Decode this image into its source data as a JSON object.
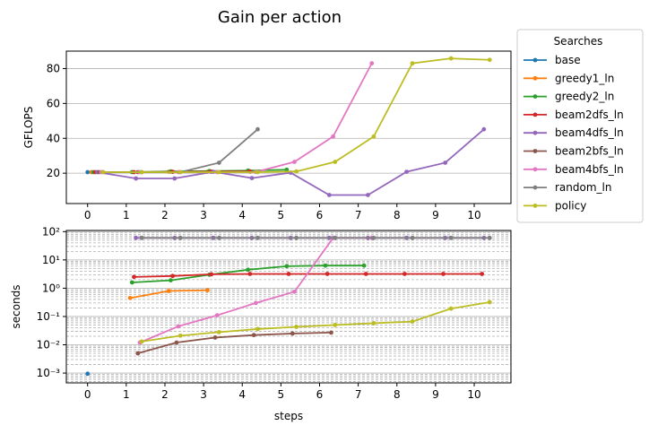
{
  "figure": {
    "title": "Gain per action"
  },
  "legend": {
    "title": "Searches",
    "placement": "outside-right",
    "entries": [
      "base",
      "greedy1_ln",
      "greedy2_ln",
      "beam2dfs_ln",
      "beam4dfs_ln",
      "beam2bfs_ln",
      "beam4bfs_ln",
      "random_ln",
      "policy"
    ]
  },
  "colors": {
    "base": "#1f77b4",
    "greedy1_ln": "#ff7f0e",
    "greedy2_ln": "#2ca02c",
    "beam2dfs_ln": "#d62728",
    "beam4dfs_ln": "#9467bd",
    "beam2bfs_ln": "#8c564b",
    "beam4bfs_ln": "#e377c2",
    "random_ln": "#7f7f7f",
    "policy": "#bcbd22"
  },
  "chart_data": [
    {
      "type": "line",
      "ylabel": "GFLOPS",
      "xlabel": "",
      "xlim": [
        -0.55,
        10.95
      ],
      "ylim": [
        2.6,
        90
      ],
      "xticks": [
        0,
        1,
        2,
        3,
        4,
        5,
        6,
        7,
        8,
        9,
        10
      ],
      "yticks": [
        20,
        40,
        60,
        80
      ],
      "grid": "y-major",
      "series": [
        {
          "name": "base",
          "points": [
            [
              0.0,
              20.6
            ]
          ]
        },
        {
          "name": "greedy1_ln",
          "points": [
            [
              0.1,
              20.6
            ],
            [
              2.1,
              20.8
            ],
            [
              3.1,
              20.8
            ]
          ]
        },
        {
          "name": "greedy2_ln",
          "points": [
            [
              0.15,
              20.6
            ],
            [
              1.15,
              20.6
            ],
            [
              2.15,
              21.0
            ],
            [
              3.15,
              21.2
            ],
            [
              4.15,
              21.5
            ],
            [
              5.15,
              22.0
            ]
          ]
        },
        {
          "name": "beam2dfs_ln",
          "points": [
            [
              0.2,
              20.6
            ],
            [
              1.2,
              20.6
            ],
            [
              2.2,
              20.8
            ],
            [
              3.2,
              20.9
            ],
            [
              4.2,
              21.0
            ]
          ]
        },
        {
          "name": "beam4dfs_ln",
          "points": [
            [
              0.25,
              20.6
            ],
            [
              1.25,
              17.0
            ],
            [
              2.25,
              17.0
            ],
            [
              3.25,
              20.8
            ],
            [
              4.25,
              17.2
            ],
            [
              5.25,
              20.3
            ],
            [
              6.25,
              7.5
            ],
            [
              7.25,
              7.5
            ],
            [
              8.25,
              20.8
            ],
            [
              9.25,
              26.0
            ],
            [
              10.25,
              45.2
            ]
          ]
        },
        {
          "name": "beam2bfs_ln",
          "points": [
            [
              0.3,
              20.6
            ],
            [
              1.3,
              20.6
            ]
          ]
        },
        {
          "name": "beam4bfs_ln",
          "points": [
            [
              0.35,
              20.6
            ],
            [
              1.35,
              20.6
            ],
            [
              2.35,
              20.6
            ],
            [
              3.35,
              20.6
            ],
            [
              4.35,
              20.7
            ],
            [
              5.35,
              26.5
            ],
            [
              6.35,
              41.0
            ],
            [
              7.35,
              83.0
            ]
          ]
        },
        {
          "name": "random_ln",
          "points": [
            [
              0.4,
              20.6
            ],
            [
              1.4,
              20.6
            ],
            [
              2.4,
              20.6
            ],
            [
              3.4,
              26.0
            ],
            [
              4.4,
              45.2
            ]
          ]
        },
        {
          "name": "policy",
          "points": [
            [
              0.4,
              20.6
            ],
            [
              1.4,
              20.6
            ],
            [
              2.4,
              20.6
            ],
            [
              3.4,
              20.6
            ],
            [
              4.4,
              20.6
            ],
            [
              5.4,
              21.0
            ],
            [
              6.4,
              26.5
            ],
            [
              7.4,
              41.0
            ],
            [
              8.4,
              83.0
            ],
            [
              9.4,
              85.8
            ],
            [
              10.4,
              85.0
            ]
          ]
        }
      ]
    },
    {
      "type": "line",
      "xlabel": "steps",
      "ylabel": "seconds",
      "yscale": "log",
      "xlim": [
        -0.55,
        10.95
      ],
      "ylim": [
        0.00045,
        110
      ],
      "xticks": [
        0,
        1,
        2,
        3,
        4,
        5,
        6,
        7,
        8,
        9,
        10
      ],
      "yticks": [
        0.001,
        0.01,
        0.1,
        1,
        10,
        100
      ],
      "ytick_labels": [
        "10⁻³",
        "10⁻²",
        "10⁻¹",
        "10⁰",
        "10¹",
        "10²"
      ],
      "grid": "y-major-and-minor",
      "series": [
        {
          "name": "base",
          "points": [
            [
              0.0,
              0.00095
            ]
          ]
        },
        {
          "name": "greedy1_ln",
          "points": [
            [
              1.1,
              0.45
            ],
            [
              2.1,
              0.8
            ],
            [
              3.1,
              0.85
            ]
          ]
        },
        {
          "name": "greedy2_ln",
          "points": [
            [
              1.15,
              1.6
            ],
            [
              2.15,
              1.9
            ],
            [
              3.15,
              3.0
            ],
            [
              4.15,
              4.5
            ],
            [
              5.15,
              6.0
            ],
            [
              6.15,
              6.3
            ],
            [
              7.15,
              6.3
            ]
          ]
        },
        {
          "name": "beam2dfs_ln",
          "points": [
            [
              1.2,
              2.5
            ],
            [
              2.2,
              2.7
            ],
            [
              3.2,
              3.1
            ],
            [
              4.2,
              3.2
            ],
            [
              5.2,
              3.2
            ],
            [
              6.2,
              3.2
            ],
            [
              7.2,
              3.2
            ],
            [
              8.2,
              3.2
            ],
            [
              9.2,
              3.2
            ],
            [
              10.2,
              3.2
            ]
          ]
        },
        {
          "name": "beam4dfs_ln",
          "points": [
            [
              1.25,
              60
            ],
            [
              2.25,
              60
            ],
            [
              3.25,
              60
            ],
            [
              4.25,
              60
            ],
            [
              5.25,
              60
            ],
            [
              6.25,
              60
            ],
            [
              7.25,
              60
            ],
            [
              8.25,
              60
            ],
            [
              9.25,
              60
            ],
            [
              10.25,
              60
            ]
          ]
        },
        {
          "name": "beam2bfs_ln",
          "points": [
            [
              1.3,
              0.005
            ],
            [
              2.3,
              0.012
            ],
            [
              3.3,
              0.018
            ],
            [
              4.3,
              0.022
            ],
            [
              5.3,
              0.025
            ],
            [
              6.3,
              0.027
            ]
          ]
        },
        {
          "name": "beam4bfs_ln",
          "points": [
            [
              1.35,
              0.012
            ],
            [
              2.35,
              0.045
            ],
            [
              3.35,
              0.11
            ],
            [
              4.35,
              0.3
            ],
            [
              5.35,
              0.75
            ],
            [
              6.35,
              60
            ],
            [
              7.35,
              60
            ]
          ]
        },
        {
          "name": "random_ln",
          "points": [
            [
              1.4,
              60
            ],
            [
              2.4,
              60
            ],
            [
              3.4,
              60
            ],
            [
              4.4,
              60
            ],
            [
              5.4,
              60
            ],
            [
              6.4,
              60
            ],
            [
              7.4,
              60
            ],
            [
              8.4,
              60
            ],
            [
              9.4,
              60
            ],
            [
              10.4,
              60
            ]
          ]
        },
        {
          "name": "policy",
          "points": [
            [
              1.4,
              0.013
            ],
            [
              2.4,
              0.021
            ],
            [
              3.4,
              0.028
            ],
            [
              4.4,
              0.036
            ],
            [
              5.4,
              0.043
            ],
            [
              6.4,
              0.05
            ],
            [
              7.4,
              0.058
            ],
            [
              8.4,
              0.066
            ],
            [
              9.4,
              0.19
            ],
            [
              10.4,
              0.32
            ]
          ]
        }
      ]
    }
  ]
}
